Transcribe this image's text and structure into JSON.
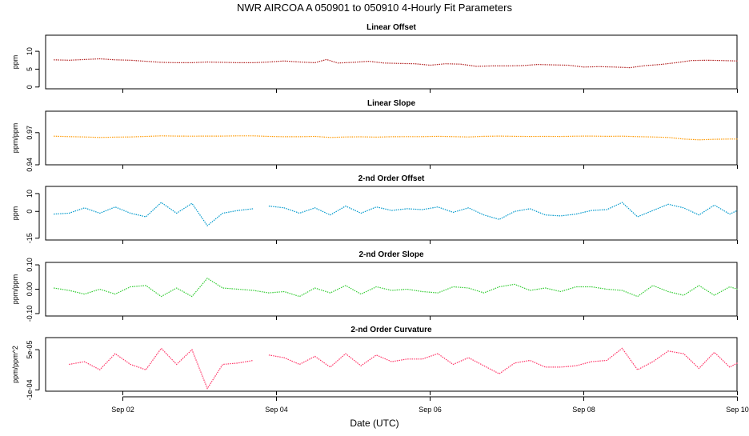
{
  "title": "NWR   AIRCOA A   050901 to 050910   4-Hourly Fit Parameters",
  "xlabel": "Date (UTC)",
  "xaxis": {
    "range_days": [
      1.0,
      10.0
    ],
    "ticks": [
      {
        "day": 2,
        "label": "Sep 02"
      },
      {
        "day": 4,
        "label": "Sep 04"
      },
      {
        "day": 6,
        "label": "Sep 06"
      },
      {
        "day": 8,
        "label": "Sep 08"
      },
      {
        "day": 10,
        "label": "Sep 10"
      }
    ]
  },
  "chart_data": [
    {
      "type": "line",
      "title": "Linear Offset",
      "ylabel": "ppm",
      "ylim": [
        -0.5,
        14.5
      ],
      "yticks": [
        {
          "v": 0,
          "label": "0"
        },
        {
          "v": 5,
          "label": "5"
        },
        {
          "v": 10,
          "label": "10"
        }
      ],
      "color": "#b22222",
      "series": [
        {
          "x": [
            1.1,
            1.3,
            1.5,
            1.7,
            1.9,
            2.1,
            2.3,
            2.5,
            2.7,
            2.9,
            3.1,
            3.3,
            3.5,
            3.7,
            3.9,
            4.1,
            4.3,
            4.5,
            4.65,
            4.8,
            5.0,
            5.2,
            5.4,
            5.6,
            5.8,
            6.0,
            6.2,
            6.4,
            6.6,
            6.8,
            7.0,
            7.2,
            7.4,
            7.6,
            7.8,
            8.0,
            8.2,
            8.4,
            8.6,
            8.8,
            9.0,
            9.2,
            9.4,
            9.6,
            9.8,
            10.0
          ],
          "y": [
            7.6,
            7.5,
            7.7,
            7.9,
            7.6,
            7.5,
            7.2,
            6.9,
            6.8,
            6.8,
            7.0,
            6.9,
            6.8,
            6.8,
            7.0,
            7.3,
            7.0,
            6.8,
            7.7,
            6.7,
            6.9,
            7.2,
            6.7,
            6.6,
            6.5,
            6.1,
            6.5,
            6.4,
            5.8,
            5.9,
            5.9,
            6.0,
            6.3,
            6.2,
            6.1,
            5.6,
            5.7,
            5.6,
            5.4,
            6.0,
            6.3,
            6.8,
            7.4,
            7.5,
            7.4,
            7.3
          ]
        }
      ]
    },
    {
      "type": "line",
      "title": "Linear Slope",
      "ylabel": "ppm/ppm",
      "ylim": [
        0.94,
        0.99
      ],
      "yticks": [
        {
          "v": 0.94,
          "label": "0.94"
        },
        {
          "v": 0.97,
          "label": "0.97"
        }
      ],
      "color": "#ff9900",
      "series": [
        {
          "x": [
            1.1,
            1.3,
            1.5,
            1.7,
            1.9,
            2.1,
            2.3,
            2.5,
            2.7,
            2.9,
            3.1,
            3.3,
            3.5,
            3.7,
            3.9,
            4.1,
            4.3,
            4.5,
            4.7,
            4.9,
            5.1,
            5.3,
            5.5,
            5.7,
            5.9,
            6.1,
            6.3,
            6.5,
            6.7,
            6.9,
            7.1,
            7.3,
            7.5,
            7.7,
            7.9,
            8.1,
            8.3,
            8.5,
            8.7,
            8.9,
            9.1,
            9.3,
            9.5,
            9.7,
            9.9,
            10.0
          ],
          "y": [
            0.9667,
            0.9663,
            0.966,
            0.9655,
            0.9658,
            0.966,
            0.9665,
            0.967,
            0.9668,
            0.9667,
            0.9668,
            0.9668,
            0.967,
            0.967,
            0.9665,
            0.9662,
            0.9662,
            0.9665,
            0.9655,
            0.966,
            0.9661,
            0.9658,
            0.9662,
            0.9663,
            0.9663,
            0.9666,
            0.9663,
            0.966,
            0.9666,
            0.9668,
            0.9666,
            0.9664,
            0.9665,
            0.9664,
            0.9667,
            0.9668,
            0.9666,
            0.9667,
            0.9663,
            0.966,
            0.9655,
            0.964,
            0.9633,
            0.9638,
            0.964,
            0.964
          ]
        }
      ]
    },
    {
      "type": "line",
      "title": "2-nd Order Offset",
      "ylabel": "ppm",
      "ylim": [
        -16,
        14
      ],
      "yticks": [
        {
          "v": -15,
          "label": "-15"
        },
        {
          "v": 0,
          "label": "0"
        },
        {
          "v": 10,
          "label": "10"
        }
      ],
      "color": "#0099cc",
      "series": [
        {
          "x": [
            1.1,
            1.3,
            1.5,
            1.7,
            1.9,
            2.1,
            2.3,
            2.5,
            2.7,
            2.9,
            3.1,
            3.3,
            3.5,
            3.7
          ],
          "y": [
            -1.5,
            -1.0,
            2.0,
            -1.0,
            2.5,
            -1.0,
            -3.0,
            5.0,
            -1.0,
            4.5,
            -8.0,
            -1.0,
            0.5,
            1.5
          ]
        },
        {
          "x": [
            3.9,
            4.1,
            4.3,
            4.5,
            4.7,
            4.9,
            5.1,
            5.3,
            5.5,
            5.7,
            5.9,
            6.1,
            6.3,
            6.5,
            6.7,
            6.9,
            7.1,
            7.3,
            7.5,
            7.7,
            7.9,
            8.1,
            8.3,
            8.5,
            8.7,
            8.9,
            9.1,
            9.3,
            9.5,
            9.7,
            9.9,
            10.0
          ],
          "y": [
            3.0,
            2.0,
            -1.0,
            2.0,
            -2.0,
            3.0,
            -1.0,
            2.5,
            0.5,
            1.5,
            1.0,
            2.5,
            -0.5,
            2.0,
            -2.0,
            -4.5,
            0.0,
            1.5,
            -2.0,
            -2.5,
            -1.5,
            0.5,
            1.0,
            5.0,
            -3.0,
            0.5,
            4.0,
            2.0,
            -2.0,
            3.5,
            -1.5,
            0.5
          ]
        }
      ]
    },
    {
      "type": "line",
      "title": "2-nd Order Slope",
      "ylabel": "ppm/ppm",
      "ylim": [
        -0.11,
        0.11
      ],
      "yticks": [
        {
          "v": -0.1,
          "label": "-0.10"
        },
        {
          "v": 0.0,
          "label": "0.00"
        },
        {
          "v": 0.1,
          "label": "0.10"
        }
      ],
      "color": "#33cc33",
      "series": [
        {
          "x": [
            1.1,
            1.3,
            1.5,
            1.7,
            1.9,
            2.1,
            2.3,
            2.5,
            2.7,
            2.9,
            3.1,
            3.3,
            3.5,
            3.7,
            3.9,
            4.1,
            4.3,
            4.5,
            4.7,
            4.9,
            5.1,
            5.3,
            5.5,
            5.7,
            5.9,
            6.1,
            6.3,
            6.5,
            6.7,
            6.9,
            7.1,
            7.3,
            7.5,
            7.7,
            7.9,
            8.1,
            8.3,
            8.5,
            8.7,
            8.9,
            9.1,
            9.3,
            9.5,
            9.7,
            9.9,
            10.0
          ],
          "y": [
            0.005,
            -0.005,
            -0.02,
            0.0,
            -0.02,
            0.01,
            0.015,
            -0.03,
            0.005,
            -0.03,
            0.045,
            0.005,
            0.0,
            -0.005,
            -0.015,
            -0.01,
            -0.03,
            0.005,
            -0.015,
            0.015,
            -0.02,
            0.01,
            -0.005,
            0.0,
            -0.01,
            -0.015,
            0.01,
            0.005,
            -0.015,
            0.01,
            0.02,
            -0.005,
            0.005,
            -0.01,
            0.01,
            0.01,
            0.0,
            -0.005,
            -0.03,
            0.015,
            -0.01,
            -0.025,
            0.015,
            -0.025,
            0.01,
            0.0
          ]
        }
      ]
    },
    {
      "type": "line",
      "title": "2-nd Order Curvature",
      "ylabel": "ppm/ppm^2",
      "ylim": [
        -0.000105,
        9.5e-05
      ],
      "yticks": [
        {
          "v": -0.0001,
          "label": "-1e-04"
        },
        {
          "v": 5e-05,
          "label": "5e-05"
        }
      ],
      "color": "#ff3366",
      "series": [
        {
          "x": [
            1.3,
            1.5,
            1.7,
            1.9,
            2.1,
            2.3,
            2.5,
            2.7,
            2.9,
            3.1,
            3.3,
            3.5,
            3.7
          ],
          "y": [
            -5e-06,
            5e-06,
            -2.5e-05,
            3.5e-05,
            -5e-06,
            -2.5e-05,
            5.5e-05,
            -5e-06,
            5e-05,
            -9.5e-05,
            -5e-06,
            0.0,
            1e-05
          ]
        },
        {
          "x": [
            3.9,
            4.1,
            4.3,
            4.5,
            4.7,
            4.9,
            5.1,
            5.3,
            5.5,
            5.7,
            5.9,
            6.1,
            6.3,
            6.5,
            6.7,
            6.9,
            7.1,
            7.3,
            7.5,
            7.7,
            7.9,
            8.1,
            8.3,
            8.5,
            8.7,
            8.9,
            9.1,
            9.3,
            9.5,
            9.7,
            9.9,
            10.0
          ],
          "y": [
            3e-05,
            2e-05,
            -5e-06,
            2.5e-05,
            -1.5e-05,
            3.5e-05,
            -1e-05,
            3e-05,
            5e-06,
            1.5e-05,
            1.5e-05,
            3.5e-05,
            -5e-06,
            2e-05,
            -1e-05,
            -4e-05,
            0.0,
            1e-05,
            -1.5e-05,
            -1.5e-05,
            -1e-05,
            5e-06,
            1e-05,
            5.5e-05,
            -2.5e-05,
            5e-06,
            4.5e-05,
            3.5e-05,
            -2e-05,
            4e-05,
            -1.5e-05,
            0.0
          ]
        }
      ]
    }
  ]
}
